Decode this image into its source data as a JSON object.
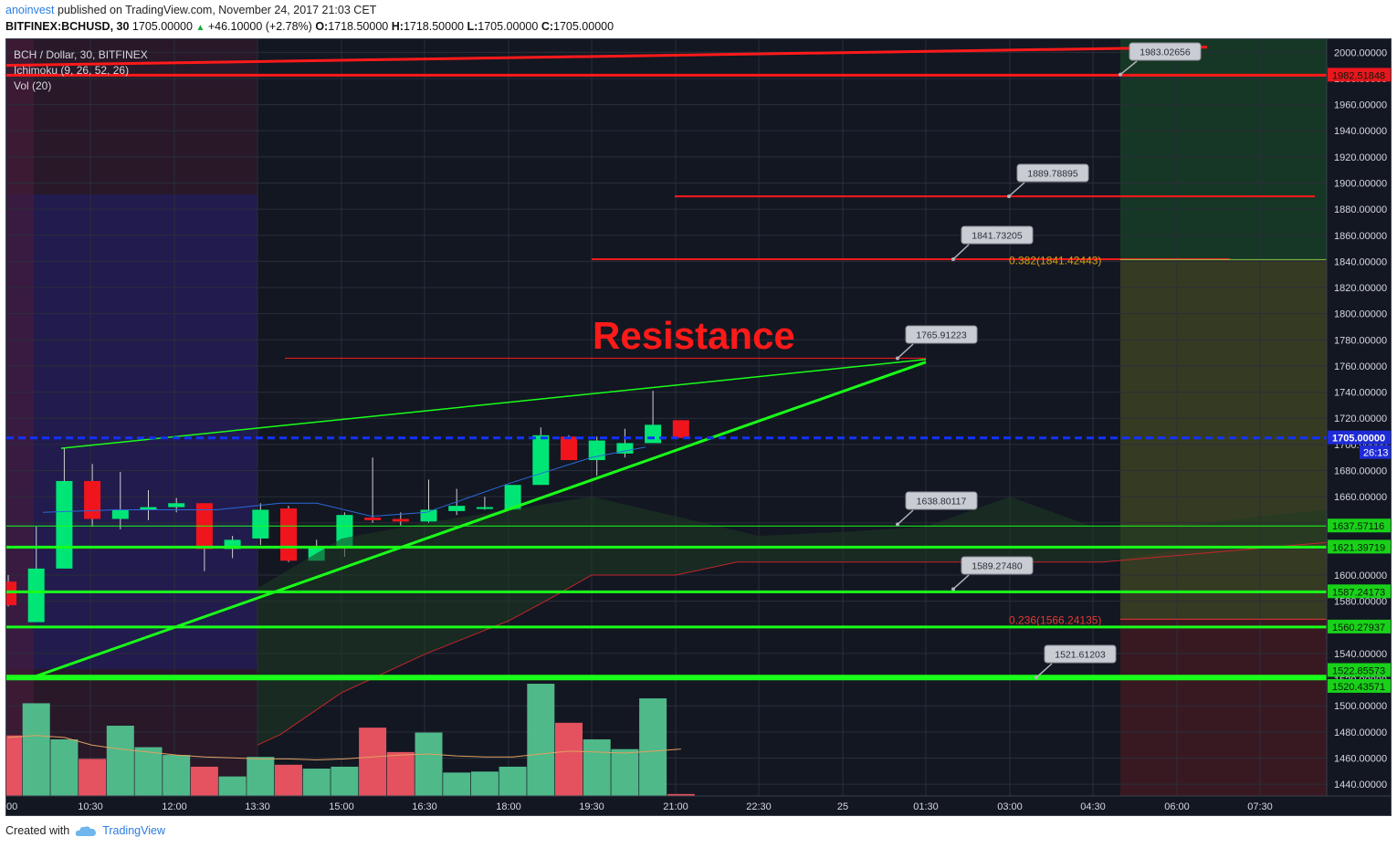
{
  "header": {
    "author": "anoinvest",
    "published_text": "published on TradingView.com, November 24, 2017 21:03 CET",
    "symbol": "BITFINEX:BCHUSD, 30",
    "last": "1705.00000",
    "change": "+46.10000 (+2.78%)",
    "o_label": "O:",
    "o_value": "1718.50000",
    "h_label": "H:",
    "h_value": "1718.50000",
    "l_label": "L:",
    "l_value": "1705.00000",
    "c_label": "C:",
    "c_value": "1705.00000"
  },
  "legend": {
    "title": "BCH / Dollar, 30, BITFINEX",
    "ichimoku": "Ichimoku (9, 26, 52, 26)",
    "volume": "Vol (20)"
  },
  "annotation": {
    "resistance": "Resistance"
  },
  "footer": {
    "created_with": "Created with",
    "brand": "TradingView"
  },
  "colors": {
    "background": "#131722",
    "up_candle": "#00e676",
    "down_candle": "#f0141c",
    "resistance_line": "#ff1a1a",
    "support_line": "#19ff19",
    "price_dashed": "#1233ff"
  },
  "chart_data": {
    "type": "candlestick",
    "symbol": "BITFINEX:BCHUSD",
    "timeframe": "30",
    "x_tick_labels": [
      "00",
      "10:30",
      "12:00",
      "13:30",
      "15:00",
      "16:30",
      "18:00",
      "19:30",
      "21:00",
      "22:30",
      "25",
      "01:30",
      "03:00",
      "04:30",
      "06:00",
      "07:30"
    ],
    "y_tick_labels": [
      "2000.00000",
      "1980.00000",
      "1960.00000",
      "1940.00000",
      "1920.00000",
      "1900.00000",
      "1880.00000",
      "1860.00000",
      "1840.00000",
      "1820.00000",
      "1800.00000",
      "1780.00000",
      "1760.00000",
      "1740.00000",
      "1720.00000",
      "1700.00000",
      "1680.00000",
      "1660.00000",
      "1640.00000",
      "1620.00000",
      "1600.00000",
      "1580.00000",
      "1560.00000",
      "1540.00000",
      "1520.00000",
      "1500.00000",
      "1480.00000",
      "1460.00000",
      "1440.00000"
    ],
    "y_ticks": [
      2000,
      1980,
      1960,
      1940,
      1920,
      1900,
      1880,
      1860,
      1840,
      1820,
      1800,
      1780,
      1760,
      1740,
      1720,
      1700,
      1680,
      1660,
      1640,
      1620,
      1600,
      1580,
      1560,
      1540,
      1520,
      1500,
      1480,
      1460,
      1440
    ],
    "ylim": [
      1431,
      2010
    ],
    "candles": [
      {
        "o": 1595,
        "h": 1600,
        "l": 1576,
        "c": 1577
      },
      {
        "o": 1564,
        "h": 1637,
        "l": 1564,
        "c": 1605
      },
      {
        "o": 1605,
        "h": 1697,
        "l": 1605,
        "c": 1672
      },
      {
        "o": 1672,
        "h": 1685,
        "l": 1637,
        "c": 1643
      },
      {
        "o": 1643,
        "h": 1679,
        "l": 1635,
        "c": 1650
      },
      {
        "o": 1650,
        "h": 1665,
        "l": 1642,
        "c": 1652
      },
      {
        "o": 1652,
        "h": 1659,
        "l": 1648,
        "c": 1655
      },
      {
        "o": 1655,
        "h": 1655,
        "l": 1603,
        "c": 1620
      },
      {
        "o": 1620,
        "h": 1630,
        "l": 1613,
        "c": 1627
      },
      {
        "o": 1628,
        "h": 1655,
        "l": 1623,
        "c": 1650
      },
      {
        "o": 1651,
        "h": 1653,
        "l": 1610,
        "c": 1611
      },
      {
        "o": 1611,
        "h": 1627,
        "l": 1611,
        "c": 1621
      },
      {
        "o": 1621,
        "h": 1648,
        "l": 1614,
        "c": 1646
      },
      {
        "o": 1644,
        "h": 1690,
        "l": 1640,
        "c": 1642
      },
      {
        "o": 1643,
        "h": 1648,
        "l": 1638,
        "c": 1641
      },
      {
        "o": 1641,
        "h": 1673,
        "l": 1640,
        "c": 1650
      },
      {
        "o": 1649,
        "h": 1666,
        "l": 1646,
        "c": 1653
      },
      {
        "o": 1651,
        "h": 1660,
        "l": 1650,
        "c": 1652
      },
      {
        "o": 1650,
        "h": 1668,
        "l": 1650,
        "c": 1669
      },
      {
        "o": 1669,
        "h": 1713,
        "l": 1669,
        "c": 1707
      },
      {
        "o": 1706,
        "h": 1707,
        "l": 1688,
        "c": 1688
      },
      {
        "o": 1688,
        "h": 1706,
        "l": 1676,
        "c": 1703
      },
      {
        "o": 1693,
        "h": 1712,
        "l": 1690,
        "c": 1701
      },
      {
        "o": 1701,
        "h": 1741,
        "l": 1701,
        "c": 1715
      },
      {
        "o": 1718.5,
        "h": 1718.5,
        "l": 1705,
        "c": 1705
      }
    ],
    "volume": [
      62,
      95,
      58,
      38,
      72,
      50,
      42,
      30,
      20,
      40,
      32,
      28,
      30,
      70,
      45,
      65,
      24,
      25,
      30,
      115,
      75,
      58,
      48,
      100,
      2
    ],
    "volume_ylim": [
      0,
      130
    ],
    "current_price": 1705.0,
    "countdown": "26:13",
    "horizontal_levels": [
      {
        "label": "1982.51848",
        "value": 1982.51848,
        "color": "#ff1a1a"
      },
      {
        "label": "1637.57116",
        "value": 1637.57116,
        "color": "#19ff19"
      },
      {
        "label": "1621.39719",
        "value": 1621.39719,
        "color": "#19ff19"
      },
      {
        "label": "1587.24173",
        "value": 1587.24173,
        "color": "#19ff19"
      },
      {
        "label": "1560.27937",
        "value": 1560.27937,
        "color": "#19ff19"
      },
      {
        "label": "1522.85573",
        "value": 1522.85573,
        "color": "#19ff19"
      },
      {
        "label": "1520.43571",
        "value": 1520.43571,
        "color": "#19ff19"
      }
    ],
    "callouts": [
      "1983.02656",
      "1889.78895",
      "1841.73205",
      "1765.91223",
      "1638.80117",
      "1589.27480",
      "1521.61203"
    ],
    "fib_labels": {
      "f382": "0.382(1841.42443)",
      "f236": "0.236(1566.24135)"
    }
  }
}
